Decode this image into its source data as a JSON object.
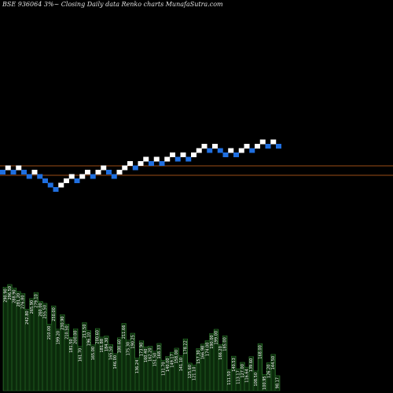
{
  "header": {
    "title": "BSE 936064  3%~  Closing Daily data  Renko  charts MunafaSutra.com"
  },
  "colors": {
    "background": "#000000",
    "up_brick": "#ffffff",
    "down_brick": "#1f6fe0",
    "reference_line": "#d2691e",
    "volume_fill": "#0b2a0b",
    "volume_edge": "#2f7a2f",
    "label": "#ffffff"
  },
  "chart_data": [
    {
      "type": "renko",
      "bricks": [
        "down",
        "up",
        "down",
        "up",
        "down",
        "down",
        "up",
        "down",
        "down",
        "down",
        "down",
        "up",
        "up",
        "up",
        "down",
        "up",
        "up",
        "down",
        "up",
        "up",
        "down",
        "down",
        "up",
        "up",
        "up",
        "down",
        "up",
        "up",
        "down",
        "up",
        "down",
        "up",
        "up",
        "down",
        "up",
        "down",
        "up",
        "up",
        "up",
        "down",
        "up",
        "down",
        "down",
        "up",
        "down",
        "up",
        "up",
        "down",
        "up",
        "up",
        "down",
        "up",
        "down"
      ],
      "reference_lines": [
        "upper",
        "lower"
      ]
    },
    {
      "type": "bar",
      "labels": [
        "290.90",
        "296.50",
        "288.90",
        "281.20",
        "276.80",
        "242.80",
        "265.90",
        "279.10",
        "260.00",
        "255.50",
        "210.00",
        "250.00",
        "199.20",
        "230.90",
        "210.50",
        "181.50",
        "200.00",
        "161.70",
        "213.50",
        "196.10",
        "165.00",
        "200.60",
        "181.88",
        "184.30",
        "165.50",
        "146.00",
        "180.60",
        "211.66",
        "175.30",
        "190.25",
        "136.24",
        "173.90",
        "160.40",
        "162.20",
        "151.50",
        "168.33",
        "131.70",
        "140.00",
        "149.17",
        "158.00",
        "141.10",
        "178.22",
        "125.60",
        "121.10",
        "157.30",
        "166.98",
        "174.00",
        "190.00",
        "199.00",
        "166.20",
        "185.00",
        "111.50",
        "140.53",
        "113.17",
        "127.00",
        "116.64",
        "139.60",
        "108.50",
        "168.00",
        "100.95",
        "126.20",
        "144.50",
        "98.17"
      ]
    }
  ]
}
